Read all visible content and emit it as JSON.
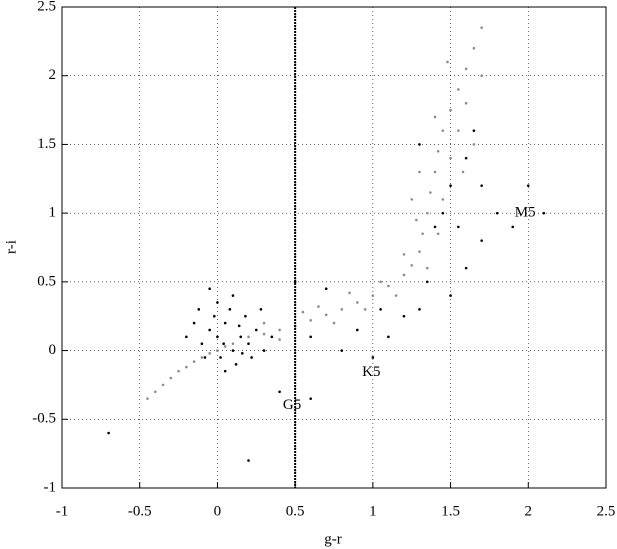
{
  "chart_data": {
    "type": "scatter",
    "x_label": "g-r",
    "y_label": "r-i",
    "xlim": [
      -1,
      2.5
    ],
    "ylim": [
      -1,
      2.5
    ],
    "xticks": [
      -1,
      -0.5,
      0,
      0.5,
      1,
      1.5,
      2,
      2.5
    ],
    "yticks": [
      -1,
      -0.5,
      0,
      0.5,
      1,
      1.5,
      2,
      2.5
    ],
    "grid": true,
    "vline": 0.5,
    "annotations": [
      {
        "text": "G5",
        "x": 0.48,
        "y": -0.4
      },
      {
        "text": "K5",
        "x": 0.99,
        "y": -0.16
      },
      {
        "text": "M5",
        "x": 1.98,
        "y": 1.0
      }
    ],
    "series": [
      {
        "color": "#8c8c8c",
        "x": [
          -0.45,
          -0.4,
          -0.35,
          -0.3,
          -0.25,
          -0.2,
          -0.15,
          -0.1,
          -0.05,
          0.0,
          0.05,
          0.1,
          0.2,
          0.3,
          0.4,
          0.5,
          0.6,
          0.7,
          0.8,
          0.9,
          1.0,
          1.1,
          1.2,
          1.25,
          1.3,
          1.32,
          1.35,
          1.37,
          1.4,
          1.42,
          1.45,
          1.5,
          1.55,
          1.6,
          1.65,
          1.7,
          0.55,
          0.75,
          0.85,
          0.95,
          1.15,
          1.2,
          1.28,
          1.45,
          1.5,
          1.3,
          1.4,
          1.55,
          1.58,
          1.25,
          1.6,
          1.48,
          1.7,
          1.65,
          0.3,
          0.4,
          0.65,
          1.05,
          1.35,
          1.42
        ],
        "values": [
          -0.35,
          -0.3,
          -0.25,
          -0.2,
          -0.15,
          -0.12,
          -0.08,
          -0.05,
          -0.02,
          0.0,
          0.03,
          0.05,
          0.1,
          0.12,
          0.15,
          0.18,
          0.22,
          0.26,
          0.3,
          0.35,
          0.4,
          0.47,
          0.55,
          0.62,
          0.72,
          0.85,
          1.0,
          1.15,
          1.3,
          1.45,
          1.6,
          1.75,
          1.9,
          2.05,
          2.2,
          2.35,
          0.28,
          0.2,
          0.42,
          0.3,
          0.4,
          0.7,
          0.95,
          1.1,
          1.4,
          1.3,
          1.7,
          1.6,
          1.3,
          1.1,
          1.8,
          2.1,
          2.0,
          1.5,
          0.2,
          0.08,
          0.32,
          0.5,
          0.6,
          0.85
        ]
      },
      {
        "color": "#000000",
        "x": [
          0,
          0.05,
          -0.05,
          0.1,
          0.15,
          -0.1,
          0.02,
          0.08,
          -0.15,
          0.2,
          0.12,
          -0.08,
          0.25,
          0.0,
          -0.2,
          0.18,
          0.05,
          0.3,
          -0.12,
          0.22,
          0.1,
          -0.05,
          0.35,
          0.28,
          0.04,
          0.14,
          -0.02,
          0.16,
          0.6,
          0.8,
          1.0,
          0.9,
          1.1,
          1.2,
          1.3,
          1.5,
          1.6,
          1.7,
          1.8,
          1.9,
          1.5,
          1.6,
          1.7,
          1.4,
          1.45,
          0.7,
          0.5,
          0.4,
          0.6,
          1.05,
          1.35,
          1.55,
          2.0,
          2.1,
          0.2,
          -0.7,
          1.65,
          1.3
        ],
        "values": [
          0.1,
          0.2,
          0.15,
          0.0,
          0.1,
          0.05,
          -0.05,
          0.3,
          0.2,
          0.05,
          -0.1,
          -0.05,
          0.15,
          0.35,
          0.1,
          0.25,
          -0.15,
          0.0,
          0.3,
          -0.05,
          0.4,
          0.45,
          0.1,
          0.3,
          0.05,
          0.18,
          0.25,
          -0.02,
          0.1,
          0.0,
          -0.05,
          0.15,
          0.1,
          0.25,
          0.3,
          0.4,
          0.6,
          0.8,
          1.0,
          0.9,
          1.2,
          1.4,
          1.2,
          0.9,
          1.0,
          0.45,
          0.5,
          -0.3,
          -0.35,
          0.3,
          0.5,
          0.9,
          1.2,
          1.0,
          -0.8,
          -0.6,
          1.6,
          1.5
        ]
      }
    ]
  }
}
